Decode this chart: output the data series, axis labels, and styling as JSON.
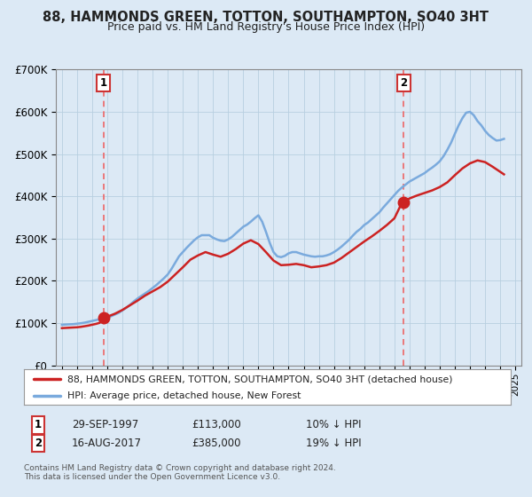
{
  "title": "88, HAMMONDS GREEN, TOTTON, SOUTHAMPTON, SO40 3HT",
  "subtitle": "Price paid vs. HM Land Registry's House Price Index (HPI)",
  "background_color": "#dce9f5",
  "plot_background": "#dce9f5",
  "ylabel": "",
  "xlabel": "",
  "ylim": [
    0,
    700000
  ],
  "yticks": [
    0,
    100000,
    200000,
    300000,
    400000,
    500000,
    600000,
    700000
  ],
  "ytick_labels": [
    "£0",
    "£100K",
    "£200K",
    "£300K",
    "£400K",
    "£500K",
    "£600K",
    "£700K"
  ],
  "sale1_date": 1997.75,
  "sale1_price": 113000,
  "sale1_label": "1",
  "sale1_text": "29-SEP-1997",
  "sale1_price_text": "£113,000",
  "sale1_hpi_text": "10% ↓ HPI",
  "sale2_date": 2017.62,
  "sale2_price": 385000,
  "sale2_label": "2",
  "sale2_text": "16-AUG-2017",
  "sale2_price_text": "£385,000",
  "sale2_hpi_text": "19% ↓ HPI",
  "red_line_color": "#cc2222",
  "blue_line_color": "#7aaadd",
  "dashed_color": "#ee6666",
  "legend_label_red": "88, HAMMONDS GREEN, TOTTON, SOUTHAMPTON, SO40 3HT (detached house)",
  "legend_label_blue": "HPI: Average price, detached house, New Forest",
  "footer_text": "Contains HM Land Registry data © Crown copyright and database right 2024.\nThis data is licensed under the Open Government Licence v3.0.",
  "hpi_years": [
    1995.0,
    1995.25,
    1995.5,
    1995.75,
    1996.0,
    1996.25,
    1996.5,
    1996.75,
    1997.0,
    1997.25,
    1997.5,
    1997.75,
    1998.0,
    1998.25,
    1998.5,
    1998.75,
    1999.0,
    1999.25,
    1999.5,
    1999.75,
    2000.0,
    2000.25,
    2000.5,
    2000.75,
    2001.0,
    2001.25,
    2001.5,
    2001.75,
    2002.0,
    2002.25,
    2002.5,
    2002.75,
    2003.0,
    2003.25,
    2003.5,
    2003.75,
    2004.0,
    2004.25,
    2004.5,
    2004.75,
    2005.0,
    2005.25,
    2005.5,
    2005.75,
    2006.0,
    2006.25,
    2006.5,
    2006.75,
    2007.0,
    2007.25,
    2007.5,
    2007.75,
    2008.0,
    2008.25,
    2008.5,
    2008.75,
    2009.0,
    2009.25,
    2009.5,
    2009.75,
    2010.0,
    2010.25,
    2010.5,
    2010.75,
    2011.0,
    2011.25,
    2011.5,
    2011.75,
    2012.0,
    2012.25,
    2012.5,
    2012.75,
    2013.0,
    2013.25,
    2013.5,
    2013.75,
    2014.0,
    2014.25,
    2014.5,
    2014.75,
    2015.0,
    2015.25,
    2015.5,
    2015.75,
    2016.0,
    2016.25,
    2016.5,
    2016.75,
    2017.0,
    2017.25,
    2017.5,
    2017.75,
    2018.0,
    2018.25,
    2018.5,
    2018.75,
    2019.0,
    2019.25,
    2019.5,
    2019.75,
    2020.0,
    2020.25,
    2020.5,
    2020.75,
    2021.0,
    2021.25,
    2021.5,
    2021.75,
    2022.0,
    2022.25,
    2022.5,
    2022.75,
    2023.0,
    2023.25,
    2023.5,
    2023.75,
    2024.0,
    2024.25
  ],
  "hpi_values": [
    96000,
    96500,
    97000,
    97500,
    98500,
    99500,
    101000,
    103000,
    105000,
    107000,
    109000,
    111000,
    113000,
    116000,
    120000,
    124000,
    130000,
    136000,
    143000,
    151000,
    158000,
    164000,
    170000,
    176000,
    183000,
    190000,
    198000,
    206000,
    215000,
    228000,
    243000,
    258000,
    268000,
    278000,
    287000,
    296000,
    303000,
    308000,
    308000,
    308000,
    302000,
    298000,
    295000,
    294000,
    298000,
    304000,
    312000,
    320000,
    328000,
    333000,
    340000,
    348000,
    355000,
    340000,
    316000,
    290000,
    268000,
    258000,
    256000,
    259000,
    265000,
    268000,
    268000,
    265000,
    262000,
    260000,
    258000,
    257000,
    258000,
    258000,
    260000,
    263000,
    268000,
    274000,
    281000,
    289000,
    297000,
    307000,
    316000,
    323000,
    332000,
    338000,
    346000,
    354000,
    362000,
    373000,
    383000,
    393000,
    403000,
    413000,
    421000,
    428000,
    435000,
    440000,
    445000,
    450000,
    455000,
    462000,
    468000,
    475000,
    483000,
    495000,
    510000,
    527000,
    548000,
    568000,
    585000,
    598000,
    600000,
    592000,
    578000,
    568000,
    555000,
    545000,
    538000,
    532000,
    533000,
    536000
  ],
  "red_years": [
    1995.0,
    1995.25,
    1995.5,
    1995.75,
    1996.0,
    1996.25,
    1996.5,
    1996.75,
    1997.0,
    1997.25,
    1997.5,
    1997.75,
    1998.0,
    1998.5,
    1999.0,
    1999.5,
    2000.0,
    2000.5,
    2001.0,
    2001.5,
    2002.0,
    2002.5,
    2003.0,
    2003.5,
    2004.0,
    2004.5,
    2005.0,
    2005.5,
    2006.0,
    2006.5,
    2007.0,
    2007.5,
    2008.0,
    2008.5,
    2009.0,
    2009.5,
    2010.0,
    2010.5,
    2011.0,
    2011.5,
    2012.0,
    2012.5,
    2013.0,
    2013.5,
    2014.0,
    2014.5,
    2015.0,
    2015.5,
    2016.0,
    2016.5,
    2017.0,
    2017.5,
    2017.75,
    2018.0,
    2018.5,
    2019.0,
    2019.5,
    2020.0,
    2020.5,
    2021.0,
    2021.5,
    2022.0,
    2022.5,
    2023.0,
    2023.5,
    2024.0,
    2024.25
  ],
  "red_values": [
    88000,
    88500,
    89000,
    89500,
    90000,
    91000,
    92500,
    94000,
    96000,
    98000,
    100500,
    113000,
    115000,
    122000,
    131000,
    142000,
    153000,
    165000,
    175000,
    185000,
    198000,
    215000,
    232000,
    250000,
    260000,
    268000,
    262000,
    257000,
    264000,
    275000,
    288000,
    296000,
    287000,
    268000,
    248000,
    237000,
    238000,
    240000,
    237000,
    232000,
    234000,
    237000,
    243000,
    254000,
    267000,
    280000,
    293000,
    305000,
    318000,
    332000,
    348000,
    385000,
    390000,
    395000,
    402000,
    408000,
    414000,
    422000,
    433000,
    450000,
    466000,
    478000,
    485000,
    481000,
    470000,
    458000,
    452000
  ]
}
